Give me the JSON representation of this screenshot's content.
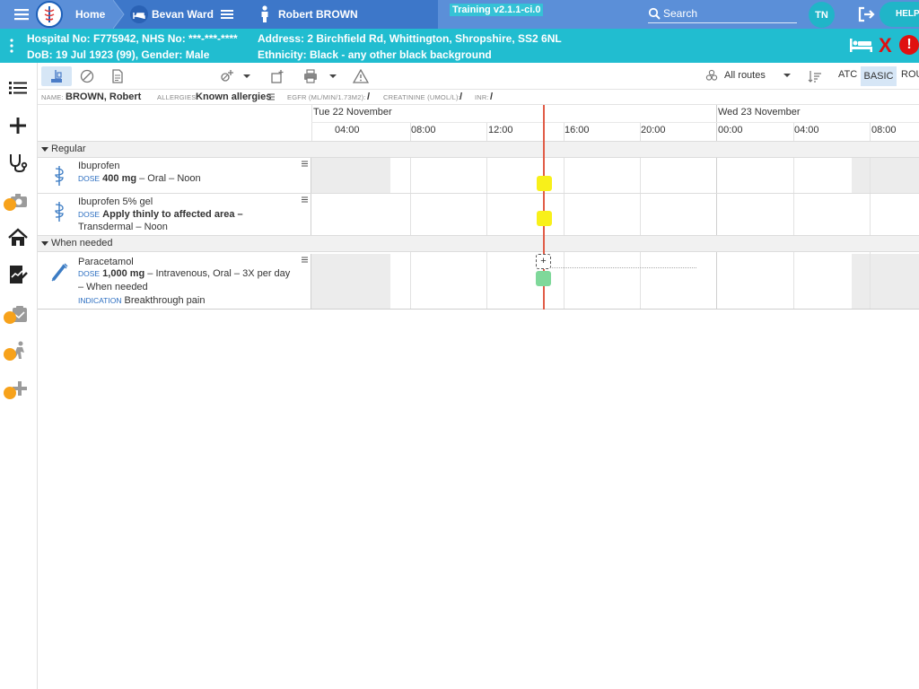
{
  "nav": {
    "home_label": "Home",
    "ward_label": "Bevan Ward",
    "patient_label": "Robert BROWN",
    "training_label": "Training v2.1.1-ci.0",
    "search_placeholder": "Search",
    "user_initials": "TN",
    "help_label": "HELP"
  },
  "banner": {
    "hospital_line": "Hospital No: F775942, NHS No: ***-***-****",
    "dob_line": "DoB: 19 Jul 1923 (99), Gender: Male",
    "address_line": "Address: 2 Birchfield Rd, Whittington, Shropshire, SS2 6NL",
    "ethnicity_line": "Ethnicity: Black - any other black background"
  },
  "toolbar": {
    "routes_label": "All routes",
    "atc_label": "ATC",
    "basic_label": "BASIC",
    "route_label": "ROU"
  },
  "info": {
    "name_label": "NAME:",
    "name_value": "BROWN, Robert",
    "allergies_label": "ALLERGIES:",
    "allergies_value": "Known allergies",
    "egfr_label": "EGFR (ML/MIN/1.73M2):",
    "egfr_value": "/",
    "creat_label": "CREATININE (UMOL/L):",
    "creat_value": "/",
    "inr_label": "INR:",
    "inr_value": "/"
  },
  "timeline": {
    "day1": "Tue 22 November",
    "day2": "Wed 23 November",
    "ticks": [
      "04:00",
      "08:00",
      "12:00",
      "16:00",
      "20:00",
      "00:00",
      "04:00",
      "08:00"
    ]
  },
  "sections": {
    "regular": "Regular",
    "when_needed": "When needed"
  },
  "meds": [
    {
      "name": "Ibuprofen",
      "dose_label": "DOSE",
      "dose": "400 mg",
      "detail": " – Oral – Noon",
      "admin_color": "#f8f01a"
    },
    {
      "name": "Ibuprofen 5% gel",
      "dose_label": "DOSE",
      "dose": "Apply thinly to affected area –",
      "detail2": "Transdermal – Noon",
      "admin_color": "#f8f01a"
    },
    {
      "name": "Paracetamol",
      "dose_label": "DOSE",
      "dose": "1,000 mg",
      "detail": " – Intravenous, Oral – 3X per day",
      "detail2": "– When needed",
      "indication_label": "INDICATION",
      "indication": "Breakthrough pain",
      "admin_color": "#7fd89a",
      "plus_label": "+"
    }
  ],
  "icons": {
    "menu": "hamburger-icon",
    "bed": "bed-icon",
    "person": "person-icon",
    "search": "search-icon",
    "logout": "logout-icon",
    "alert": "alert-icon",
    "close": "close-icon"
  },
  "banner_alert": "!",
  "banner_close": "X",
  "colors": {
    "nav": "#5b8fd8",
    "nav_dark": "#3d77c9",
    "banner": "#21bdd0",
    "now_line": "#e15c47"
  }
}
